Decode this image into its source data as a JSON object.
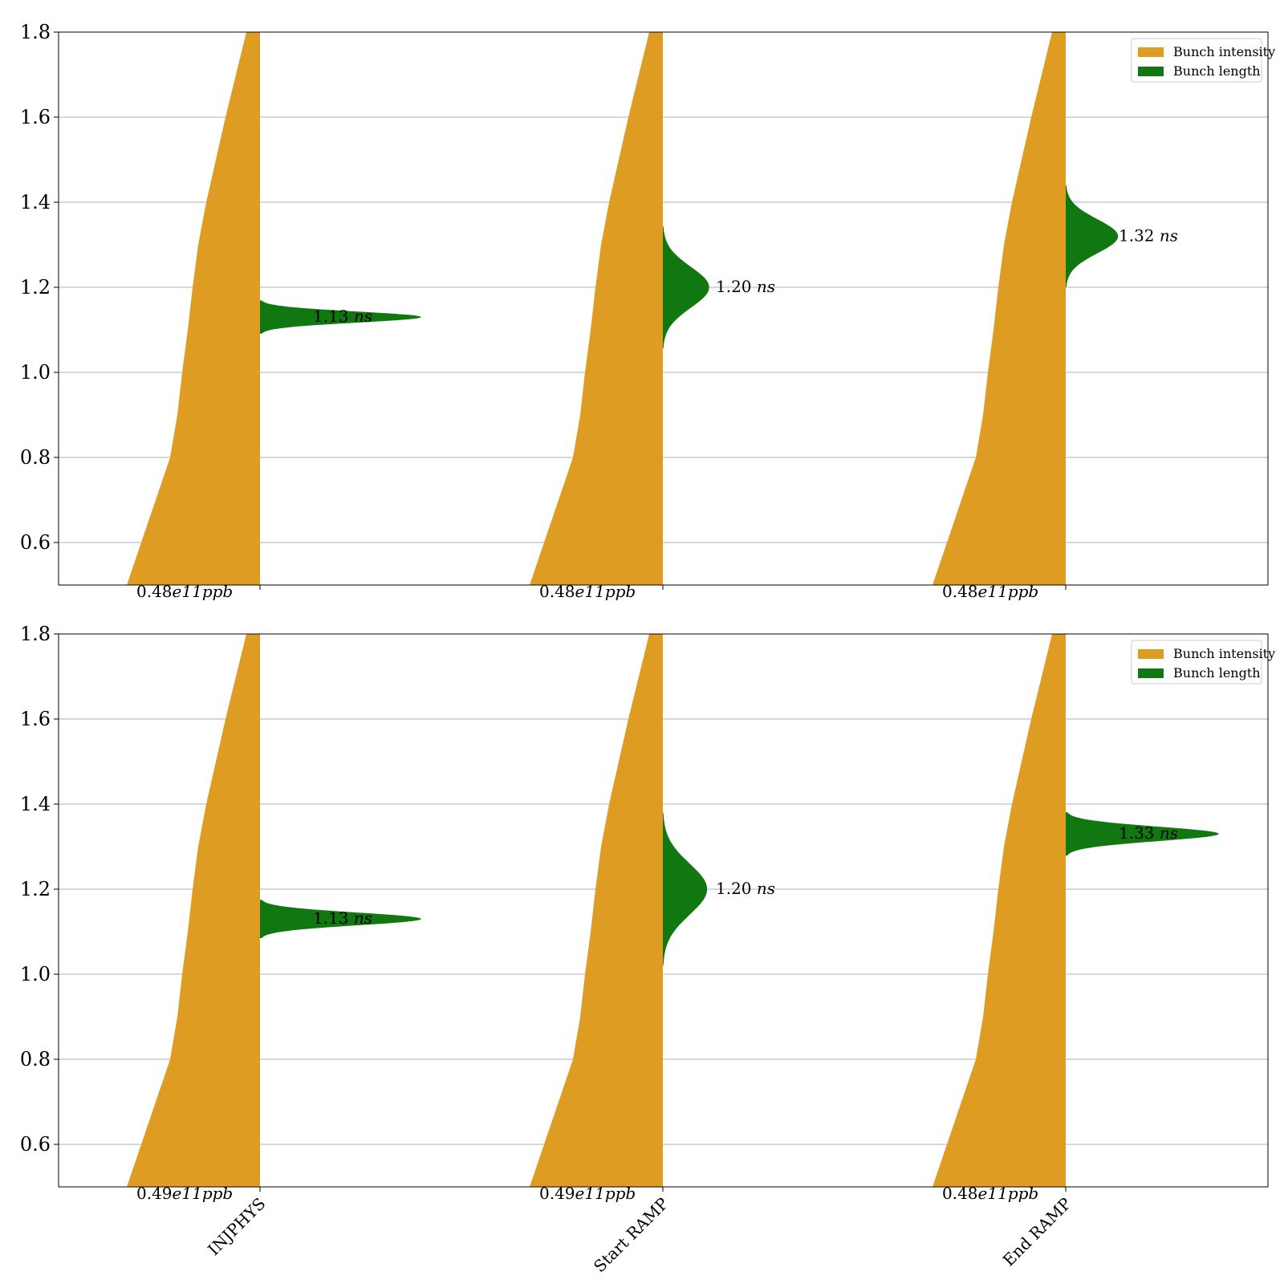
{
  "chart_data": [
    {
      "type": "violin",
      "ylim": [
        0.5,
        1.8
      ],
      "yticks": [
        "0.6",
        "0.8",
        "1.0",
        "1.2",
        "1.4",
        "1.6",
        "1.8"
      ],
      "grid": "y",
      "categories": [
        "INJPHYS",
        "Start RAMP",
        "End RAMP"
      ],
      "show_category_labels": false,
      "legend": {
        "placement": "top-right",
        "entries": [
          {
            "label": "Bunch intensity",
            "color": "#df9c22"
          },
          {
            "label": "Bunch length",
            "color": "#117711"
          }
        ]
      },
      "series": [
        {
          "name": "Bunch intensity",
          "color": "#df9c22",
          "side": "left",
          "labels": [
            {
              "value": "0.48",
              "exp": "e11",
              "unit": "ppb"
            },
            {
              "value": "0.48",
              "exp": "e11",
              "unit": "ppb"
            },
            {
              "value": "0.48",
              "exp": "e11",
              "unit": "ppb"
            }
          ]
        },
        {
          "name": "Bunch length",
          "color": "#117711",
          "side": "right",
          "centers": [
            1.13,
            1.2,
            1.32
          ],
          "spreads": [
            0.013,
            0.048,
            0.04
          ],
          "widths": [
            0.8,
            0.23,
            0.26
          ],
          "labels": [
            {
              "value": "1.13",
              "unit": "ns"
            },
            {
              "value": "1.20",
              "unit": "ns"
            },
            {
              "value": "1.32",
              "unit": "ns"
            }
          ]
        }
      ]
    },
    {
      "type": "violin",
      "ylim": [
        0.5,
        1.8
      ],
      "yticks": [
        "0.6",
        "0.8",
        "1.0",
        "1.2",
        "1.4",
        "1.6",
        "1.8"
      ],
      "grid": "y",
      "categories": [
        "INJPHYS",
        "Start RAMP",
        "End RAMP"
      ],
      "show_category_labels": true,
      "legend": {
        "placement": "top-right",
        "entries": [
          {
            "label": "Bunch intensity",
            "color": "#df9c22"
          },
          {
            "label": "Bunch length",
            "color": "#117711"
          }
        ]
      },
      "series": [
        {
          "name": "Bunch intensity",
          "color": "#df9c22",
          "side": "left",
          "labels": [
            {
              "value": "0.49",
              "exp": "e11",
              "unit": "ppb"
            },
            {
              "value": "0.49",
              "exp": "e11",
              "unit": "ppb"
            },
            {
              "value": "0.48",
              "exp": "e11",
              "unit": "ppb"
            }
          ]
        },
        {
          "name": "Bunch length",
          "color": "#117711",
          "side": "right",
          "centers": [
            1.13,
            1.2,
            1.33
          ],
          "spreads": [
            0.015,
            0.06,
            0.017
          ],
          "widths": [
            0.8,
            0.22,
            0.76
          ],
          "labels": [
            {
              "value": "1.13",
              "unit": "ns"
            },
            {
              "value": "1.20",
              "unit": "ns"
            },
            {
              "value": "1.33",
              "unit": "ns"
            }
          ]
        }
      ]
    }
  ]
}
